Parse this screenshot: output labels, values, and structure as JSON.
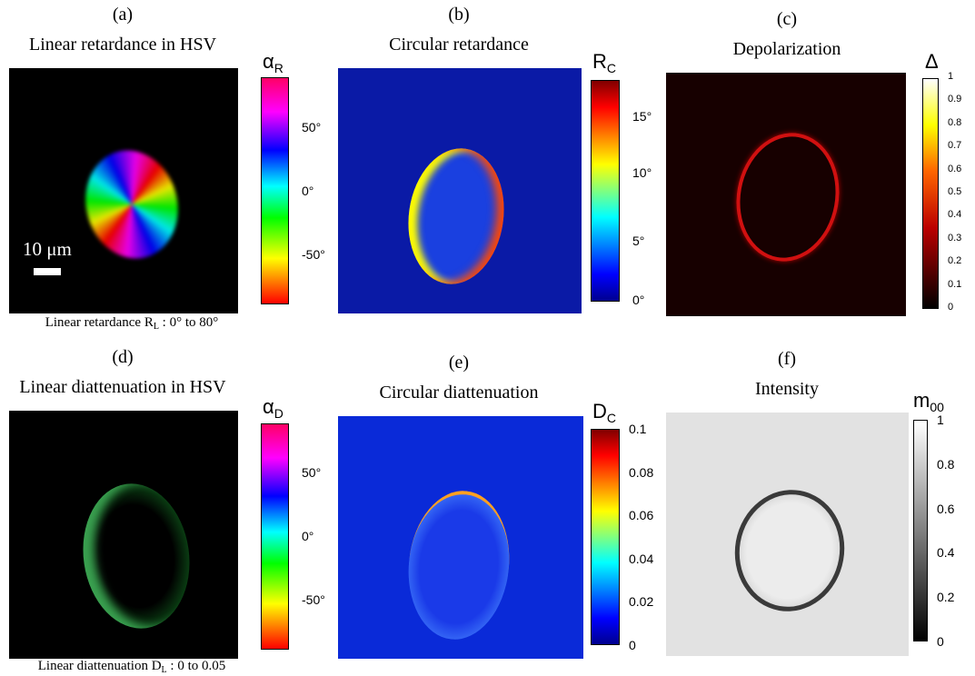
{
  "panels": [
    {
      "label": "(a)",
      "title": "Linear retardance in HSV",
      "colorbar": {
        "symbol": "α",
        "subscript": "R",
        "ticks": [
          "50°",
          "0°",
          "-50°"
        ]
      },
      "scale_bar": "10 μm",
      "caption": {
        "text": "Linear retardance R",
        "subscript": "L",
        "range": " : 0° to 80°"
      }
    },
    {
      "label": "(b)",
      "title": "Circular retardance",
      "colorbar": {
        "symbol": "R",
        "subscript": "C",
        "ticks": [
          "15°",
          "10°",
          "5°",
          "0°"
        ]
      }
    },
    {
      "label": "(c)",
      "title": "Depolarization",
      "colorbar": {
        "symbol": "Δ",
        "ticks": [
          "1",
          "0.9",
          "0.8",
          "0.7",
          "0.6",
          "0.5",
          "0.4",
          "0.3",
          "0.2",
          "0.1",
          "0"
        ]
      }
    },
    {
      "label": "(d)",
      "title": "Linear diattenuation in HSV",
      "colorbar": {
        "symbol": "α",
        "subscript": "D",
        "ticks": [
          "50°",
          "0°",
          "-50°"
        ]
      },
      "caption": {
        "text": "Linear diattenuation D",
        "subscript": "L",
        "range": " : 0 to 0.05"
      }
    },
    {
      "label": "(e)",
      "title": "Circular diattenuation",
      "colorbar": {
        "symbol": "D",
        "subscript": "C",
        "ticks": [
          "0.1",
          "0.08",
          "0.06",
          "0.04",
          "0.02",
          "0"
        ]
      }
    },
    {
      "label": "(f)",
      "title": "Intensity",
      "colorbar": {
        "symbol": "m",
        "subscript": "00",
        "ticks": [
          "1",
          "0.8",
          "0.6",
          "0.4",
          "0.2",
          "0"
        ]
      }
    }
  ]
}
